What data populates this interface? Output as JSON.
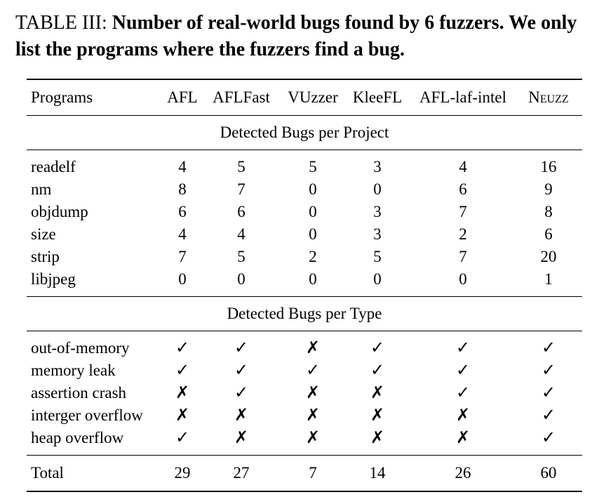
{
  "caption": {
    "label": "TABLE III:",
    "text": "Number of real-world bugs found by 6 fuzzers. We only list the programs where the fuzzers find a bug."
  },
  "table": {
    "header": {
      "programs": "Programs",
      "columns": [
        "AFL",
        "AFLFast",
        "VUzzer",
        "KleeFL",
        "AFL-laf-intel",
        "Neuzz"
      ]
    },
    "section_project": "Detected Bugs per Project",
    "project_rows": [
      {
        "name": "readelf",
        "values": [
          "4",
          "5",
          "5",
          "3",
          "4",
          "16"
        ]
      },
      {
        "name": "nm",
        "values": [
          "8",
          "7",
          "0",
          "0",
          "6",
          "9"
        ]
      },
      {
        "name": "objdump",
        "values": [
          "6",
          "6",
          "0",
          "3",
          "7",
          "8"
        ]
      },
      {
        "name": "size",
        "values": [
          "4",
          "4",
          "0",
          "3",
          "2",
          "6"
        ]
      },
      {
        "name": "strip",
        "values": [
          "7",
          "5",
          "2",
          "5",
          "7",
          "20"
        ]
      },
      {
        "name": "libjpeg",
        "values": [
          "0",
          "0",
          "0",
          "0",
          "0",
          "1"
        ]
      }
    ],
    "section_type": "Detected Bugs per Type",
    "type_rows": [
      {
        "name": "out-of-memory",
        "values": [
          "✓",
          "✓",
          "✗",
          "✓",
          "✓",
          "✓"
        ]
      },
      {
        "name": "memory leak",
        "values": [
          "✓",
          "✓",
          "✓",
          "✓",
          "✓",
          "✓"
        ]
      },
      {
        "name": "assertion crash",
        "values": [
          "✗",
          "✓",
          "✗",
          "✗",
          "✓",
          "✓"
        ]
      },
      {
        "name": "interger overflow",
        "values": [
          "✗",
          "✗",
          "✗",
          "✗",
          "✗",
          "✓"
        ]
      },
      {
        "name": "heap overflow",
        "values": [
          "✓",
          "✗",
          "✗",
          "✗",
          "✗",
          "✓"
        ]
      }
    ],
    "total": {
      "name": "Total",
      "values": [
        "29",
        "27",
        "7",
        "14",
        "26",
        "60"
      ]
    }
  }
}
